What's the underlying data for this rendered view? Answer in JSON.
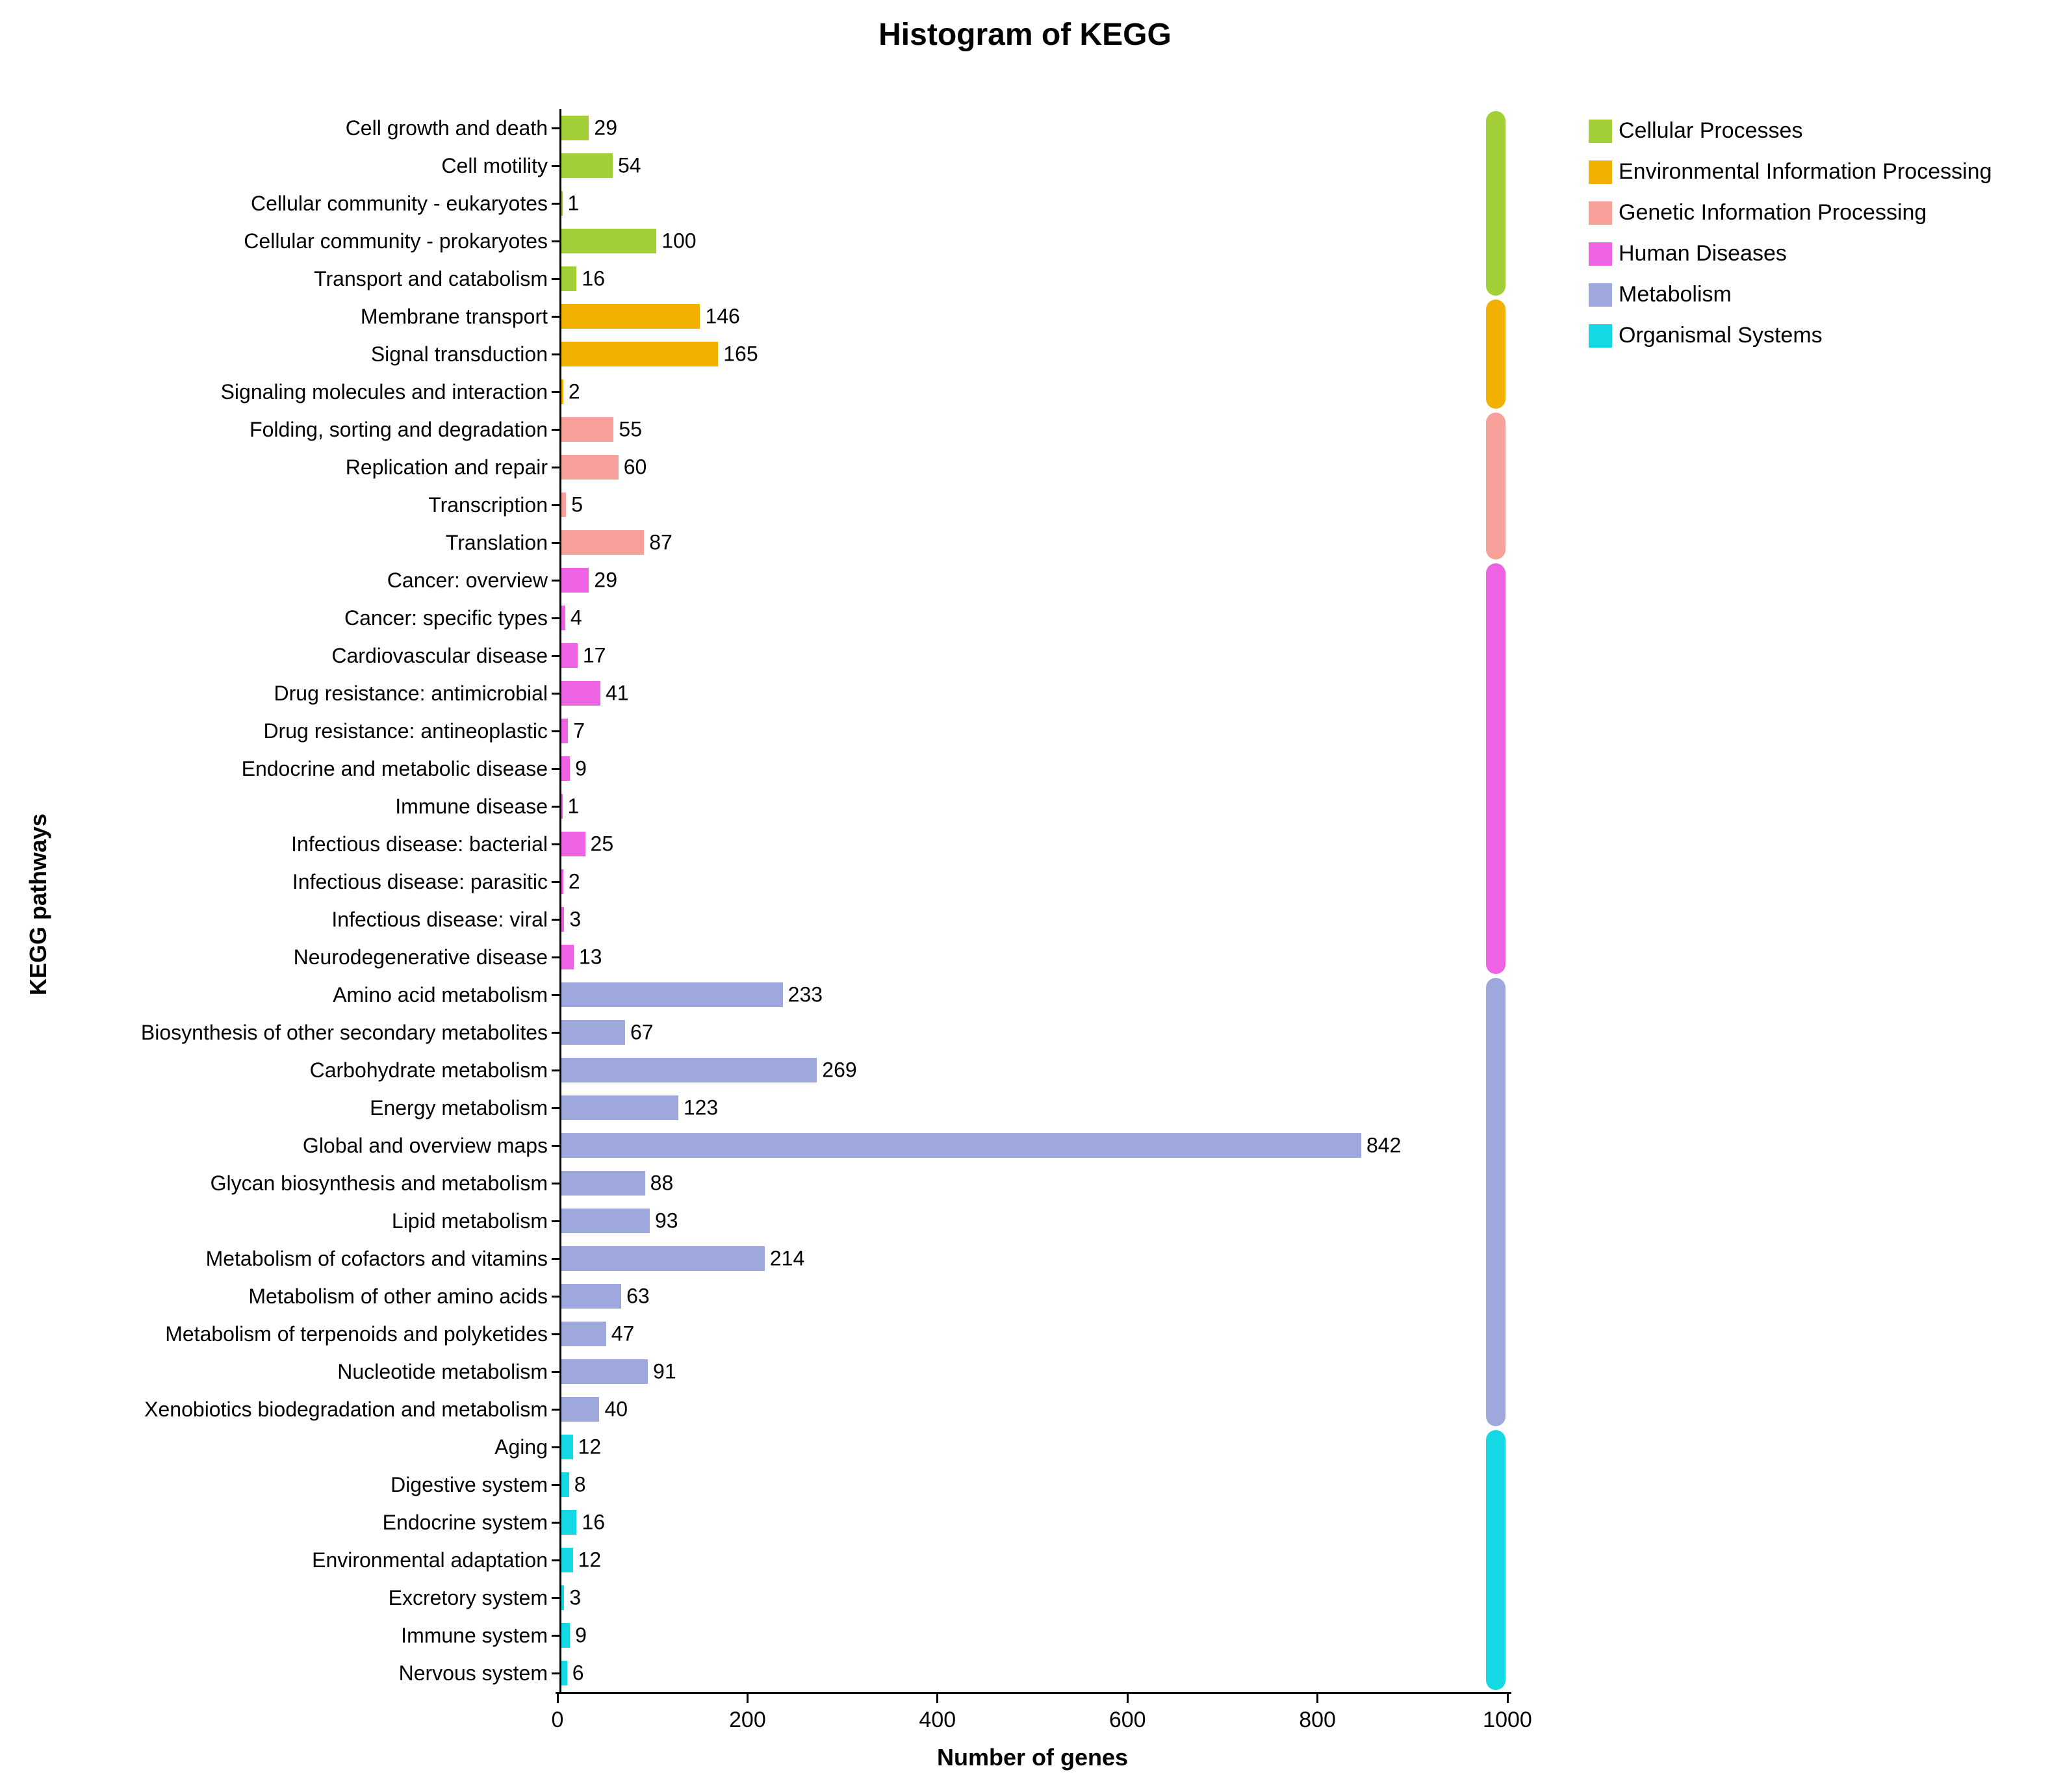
{
  "chart_data": {
    "type": "bar",
    "orientation": "horizontal",
    "title": "Histogram of KEGG",
    "xlabel": "Number of genes",
    "ylabel": "KEGG pathways",
    "xlim": [
      0,
      1000
    ],
    "x_ticks": [
      0,
      200,
      400,
      600,
      800,
      1000
    ],
    "grid": false,
    "legend_position": "right",
    "groups": [
      {
        "name": "Cellular Processes",
        "color": "#A2CF35",
        "items": [
          {
            "label": "Cell growth and death",
            "value": 29
          },
          {
            "label": "Cell motility",
            "value": 54
          },
          {
            "label": "Cellular community - eukaryotes",
            "value": 1
          },
          {
            "label": "Cellular community - prokaryotes",
            "value": 100
          },
          {
            "label": "Transport and catabolism",
            "value": 16
          }
        ]
      },
      {
        "name": "Environmental Information Processing",
        "color": "#F2B100",
        "items": [
          {
            "label": "Membrane transport",
            "value": 146
          },
          {
            "label": "Signal transduction",
            "value": 165
          },
          {
            "label": "Signaling molecules and interaction",
            "value": 2
          }
        ]
      },
      {
        "name": "Genetic Information Processing",
        "color": "#F8A19A",
        "items": [
          {
            "label": "Folding, sorting and degradation",
            "value": 55
          },
          {
            "label": "Replication and repair",
            "value": 60
          },
          {
            "label": "Transcription",
            "value": 5
          },
          {
            "label": "Translation",
            "value": 87
          }
        ]
      },
      {
        "name": "Human Diseases",
        "color": "#EE63E3",
        "items": [
          {
            "label": "Cancer: overview",
            "value": 29
          },
          {
            "label": "Cancer: specific types",
            "value": 4
          },
          {
            "label": "Cardiovascular disease",
            "value": 17
          },
          {
            "label": "Drug resistance: antimicrobial",
            "value": 41
          },
          {
            "label": "Drug resistance: antineoplastic",
            "value": 7
          },
          {
            "label": "Endocrine and metabolic disease",
            "value": 9
          },
          {
            "label": "Immune disease",
            "value": 1
          },
          {
            "label": "Infectious disease: bacterial",
            "value": 25
          },
          {
            "label": "Infectious disease: parasitic",
            "value": 2
          },
          {
            "label": "Infectious disease: viral",
            "value": 3
          },
          {
            "label": "Neurodegenerative disease",
            "value": 13
          }
        ]
      },
      {
        "name": "Metabolism",
        "color": "#9FA8DC",
        "items": [
          {
            "label": "Amino acid metabolism",
            "value": 233
          },
          {
            "label": "Biosynthesis of other secondary metabolites",
            "value": 67
          },
          {
            "label": "Carbohydrate metabolism",
            "value": 269
          },
          {
            "label": "Energy metabolism",
            "value": 123
          },
          {
            "label": "Global and overview maps",
            "value": 842
          },
          {
            "label": "Glycan biosynthesis and metabolism",
            "value": 88
          },
          {
            "label": "Lipid metabolism",
            "value": 93
          },
          {
            "label": "Metabolism of cofactors and vitamins",
            "value": 214
          },
          {
            "label": "Metabolism of other amino acids",
            "value": 63
          },
          {
            "label": "Metabolism of terpenoids and polyketides",
            "value": 47
          },
          {
            "label": "Nucleotide metabolism",
            "value": 91
          },
          {
            "label": "Xenobiotics biodegradation and metabolism",
            "value": 40
          }
        ]
      },
      {
        "name": "Organismal Systems",
        "color": "#14D8E4",
        "items": [
          {
            "label": "Aging",
            "value": 12
          },
          {
            "label": "Digestive system",
            "value": 8
          },
          {
            "label": "Endocrine system",
            "value": 16
          },
          {
            "label": "Environmental adaptation",
            "value": 12
          },
          {
            "label": "Excretory system",
            "value": 3
          },
          {
            "label": "Immune system",
            "value": 9
          },
          {
            "label": "Nervous system",
            "value": 6
          }
        ]
      }
    ]
  }
}
